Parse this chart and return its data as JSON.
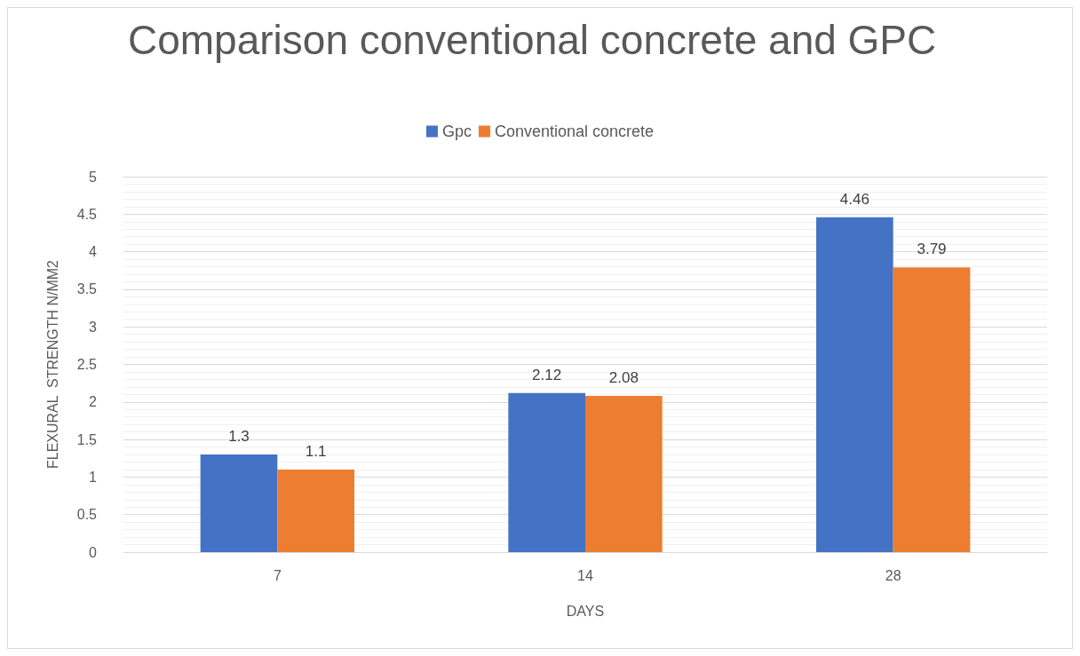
{
  "chart_data": {
    "type": "bar",
    "title": "Comparison conventional concrete and GPC",
    "xlabel": "DAYS",
    "ylabel": "FLEXURAL  STRENGTH N/MM2",
    "categories": [
      "7",
      "14",
      "28"
    ],
    "series": [
      {
        "name": "Gpc",
        "color": "#4472c4",
        "values": [
          1.3,
          2.12,
          4.46
        ]
      },
      {
        "name": "Conventional concrete",
        "color": "#ed7d31",
        "values": [
          1.1,
          2.08,
          3.79
        ]
      }
    ],
    "ylim": [
      0,
      5
    ],
    "yticks": [
      0,
      0.5,
      1,
      1.5,
      2,
      2.5,
      3,
      3.5,
      4,
      4.5,
      5
    ],
    "grid": "y",
    "legend": "top",
    "data_labels": true
  }
}
